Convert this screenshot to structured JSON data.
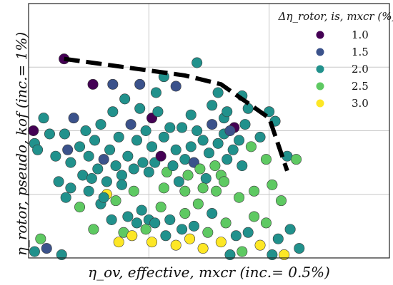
{
  "chart_data": {
    "type": "scatter",
    "xlabel": "η_ov, effective, mxcr (inc.= 0.5%)",
    "ylabel": "η_rotor, pseudo, kof (inc.= 1%)",
    "xlim": [
      0,
      6
    ],
    "ylim": [
      0,
      4
    ],
    "grid": true,
    "legend": {
      "title": "Δη_rotor, is, mxcr (%)",
      "position": "top-right",
      "entries": [
        {
          "label": "1.0",
          "value": 1.0,
          "color": "#440154"
        },
        {
          "label": "1.5",
          "value": 1.5,
          "color": "#3b528b"
        },
        {
          "label": "2.0",
          "value": 2.0,
          "color": "#21918c"
        },
        {
          "label": "2.5",
          "value": 2.5,
          "color": "#5ec962"
        },
        {
          "label": "3.0",
          "value": 3.0,
          "color": "#fde725"
        }
      ]
    },
    "frontier": {
      "style": "dashed",
      "points": [
        [
          0.59,
          3.13
        ],
        [
          2.6,
          2.87
        ],
        [
          3.2,
          2.73
        ],
        [
          4.0,
          2.2
        ],
        [
          4.3,
          1.37
        ]
      ]
    },
    "points": [
      {
        "x": 0.59,
        "y": 3.13,
        "c": 1.0
      },
      {
        "x": 1.07,
        "y": 2.73,
        "c": 1.0
      },
      {
        "x": 1.4,
        "y": 2.73,
        "c": 1.5
      },
      {
        "x": 1.85,
        "y": 2.73,
        "c": 1.5
      },
      {
        "x": 2.05,
        "y": 2.2,
        "c": 1.0
      },
      {
        "x": 2.12,
        "y": 2.6,
        "c": 2.0
      },
      {
        "x": 2.25,
        "y": 2.85,
        "c": 2.0
      },
      {
        "x": 2.45,
        "y": 2.7,
        "c": 1.5
      },
      {
        "x": 2.7,
        "y": 2.25,
        "c": 2.0
      },
      {
        "x": 2.8,
        "y": 3.07,
        "c": 2.0
      },
      {
        "x": 3.05,
        "y": 2.4,
        "c": 2.0
      },
      {
        "x": 3.15,
        "y": 2.6,
        "c": 2.0
      },
      {
        "x": 3.25,
        "y": 2.2,
        "c": 2.0
      },
      {
        "x": 3.3,
        "y": 2.3,
        "c": 2.0
      },
      {
        "x": 3.42,
        "y": 2.05,
        "c": 1.0
      },
      {
        "x": 3.55,
        "y": 2.55,
        "c": 2.0
      },
      {
        "x": 3.65,
        "y": 2.35,
        "c": 2.0
      },
      {
        "x": 4.0,
        "y": 2.3,
        "c": 2.0
      },
      {
        "x": 4.1,
        "y": 2.15,
        "c": 2.0
      },
      {
        "x": 4.3,
        "y": 1.6,
        "c": 2.0
      },
      {
        "x": 4.45,
        "y": 1.55,
        "c": 2.5
      },
      {
        "x": 0.08,
        "y": 2.0,
        "c": 1.0
      },
      {
        "x": 0.1,
        "y": 1.8,
        "c": 2.0
      },
      {
        "x": 0.15,
        "y": 1.7,
        "c": 2.0
      },
      {
        "x": 0.25,
        "y": 2.2,
        "c": 2.0
      },
      {
        "x": 0.35,
        "y": 1.95,
        "c": 2.0
      },
      {
        "x": 0.45,
        "y": 1.6,
        "c": 2.0
      },
      {
        "x": 0.6,
        "y": 1.95,
        "c": 2.0
      },
      {
        "x": 0.65,
        "y": 1.7,
        "c": 1.5
      },
      {
        "x": 0.7,
        "y": 1.5,
        "c": 2.0
      },
      {
        "x": 0.75,
        "y": 2.2,
        "c": 1.5
      },
      {
        "x": 0.85,
        "y": 1.75,
        "c": 2.0
      },
      {
        "x": 0.9,
        "y": 1.3,
        "c": 2.0
      },
      {
        "x": 0.95,
        "y": 2.0,
        "c": 2.0
      },
      {
        "x": 1.0,
        "y": 1.6,
        "c": 2.0
      },
      {
        "x": 1.1,
        "y": 1.85,
        "c": 2.0
      },
      {
        "x": 1.15,
        "y": 1.4,
        "c": 2.0
      },
      {
        "x": 1.2,
        "y": 2.1,
        "c": 2.0
      },
      {
        "x": 1.25,
        "y": 1.55,
        "c": 1.5
      },
      {
        "x": 1.3,
        "y": 1.2,
        "c": 2.0
      },
      {
        "x": 1.35,
        "y": 1.7,
        "c": 2.0
      },
      {
        "x": 1.4,
        "y": 2.3,
        "c": 2.0
      },
      {
        "x": 1.45,
        "y": 1.45,
        "c": 2.0
      },
      {
        "x": 1.5,
        "y": 1.9,
        "c": 2.0
      },
      {
        "x": 1.55,
        "y": 1.3,
        "c": 2.0
      },
      {
        "x": 1.6,
        "y": 2.5,
        "c": 2.0
      },
      {
        "x": 1.65,
        "y": 1.6,
        "c": 2.0
      },
      {
        "x": 1.7,
        "y": 2.1,
        "c": 1.5
      },
      {
        "x": 1.75,
        "y": 1.4,
        "c": 2.0
      },
      {
        "x": 1.8,
        "y": 1.85,
        "c": 2.0
      },
      {
        "x": 1.85,
        "y": 2.35,
        "c": 2.0
      },
      {
        "x": 1.9,
        "y": 1.5,
        "c": 2.0
      },
      {
        "x": 1.95,
        "y": 2.0,
        "c": 2.0
      },
      {
        "x": 2.0,
        "y": 1.35,
        "c": 2.0
      },
      {
        "x": 2.05,
        "y": 1.75,
        "c": 2.0
      },
      {
        "x": 2.1,
        "y": 1.5,
        "c": 2.0
      },
      {
        "x": 2.15,
        "y": 2.3,
        "c": 2.0
      },
      {
        "x": 2.2,
        "y": 1.6,
        "c": 1.0
      },
      {
        "x": 2.25,
        "y": 1.9,
        "c": 2.0
      },
      {
        "x": 2.3,
        "y": 1.35,
        "c": 2.5
      },
      {
        "x": 2.35,
        "y": 2.05,
        "c": 2.0
      },
      {
        "x": 2.4,
        "y": 1.45,
        "c": 2.0
      },
      {
        "x": 2.45,
        "y": 1.7,
        "c": 2.0
      },
      {
        "x": 2.5,
        "y": 1.2,
        "c": 2.0
      },
      {
        "x": 2.55,
        "y": 2.05,
        "c": 2.0
      },
      {
        "x": 2.6,
        "y": 1.55,
        "c": 2.0
      },
      {
        "x": 2.65,
        "y": 1.3,
        "c": 2.5
      },
      {
        "x": 2.7,
        "y": 1.75,
        "c": 2.0
      },
      {
        "x": 2.75,
        "y": 1.5,
        "c": 1.5
      },
      {
        "x": 2.8,
        "y": 2.0,
        "c": 2.0
      },
      {
        "x": 2.85,
        "y": 1.4,
        "c": 2.5
      },
      {
        "x": 2.9,
        "y": 1.85,
        "c": 2.0
      },
      {
        "x": 2.95,
        "y": 1.25,
        "c": 2.0
      },
      {
        "x": 3.0,
        "y": 1.65,
        "c": 2.0
      },
      {
        "x": 3.05,
        "y": 2.1,
        "c": 1.5
      },
      {
        "x": 3.1,
        "y": 1.45,
        "c": 2.5
      },
      {
        "x": 3.15,
        "y": 1.8,
        "c": 2.0
      },
      {
        "x": 3.2,
        "y": 1.3,
        "c": 2.5
      },
      {
        "x": 3.25,
        "y": 1.95,
        "c": 2.0
      },
      {
        "x": 3.3,
        "y": 1.55,
        "c": 2.0
      },
      {
        "x": 3.35,
        "y": 2.0,
        "c": 1.5
      },
      {
        "x": 3.4,
        "y": 1.7,
        "c": 2.0
      },
      {
        "x": 3.5,
        "y": 1.85,
        "c": 2.0
      },
      {
        "x": 3.55,
        "y": 1.45,
        "c": 2.0
      },
      {
        "x": 3.6,
        "y": 2.1,
        "c": 2.0
      },
      {
        "x": 3.7,
        "y": 1.75,
        "c": 2.5
      },
      {
        "x": 3.85,
        "y": 1.9,
        "c": 2.0
      },
      {
        "x": 3.95,
        "y": 1.55,
        "c": 2.5
      },
      {
        "x": 0.3,
        "y": 0.15,
        "c": 1.5
      },
      {
        "x": 0.55,
        "y": 0.05,
        "c": 2.0
      },
      {
        "x": 0.62,
        "y": 0.95,
        "c": 2.0
      },
      {
        "x": 0.85,
        "y": 0.8,
        "c": 2.5
      },
      {
        "x": 1.0,
        "y": 1.05,
        "c": 2.0
      },
      {
        "x": 1.08,
        "y": 0.45,
        "c": 2.5
      },
      {
        "x": 1.2,
        "y": 0.85,
        "c": 2.0
      },
      {
        "x": 1.3,
        "y": 1.0,
        "c": 3.0
      },
      {
        "x": 1.38,
        "y": 0.6,
        "c": 2.0
      },
      {
        "x": 1.45,
        "y": 0.9,
        "c": 2.5
      },
      {
        "x": 1.5,
        "y": 0.25,
        "c": 3.0
      },
      {
        "x": 1.58,
        "y": 0.4,
        "c": 2.5
      },
      {
        "x": 1.65,
        "y": 0.65,
        "c": 2.0
      },
      {
        "x": 1.72,
        "y": 0.35,
        "c": 3.0
      },
      {
        "x": 1.8,
        "y": 0.55,
        "c": 2.0
      },
      {
        "x": 1.88,
        "y": 0.75,
        "c": 2.0
      },
      {
        "x": 1.95,
        "y": 0.45,
        "c": 2.5
      },
      {
        "x": 2.0,
        "y": 0.6,
        "c": 2.0
      },
      {
        "x": 2.05,
        "y": 0.25,
        "c": 3.0
      },
      {
        "x": 2.1,
        "y": 0.55,
        "c": 2.0
      },
      {
        "x": 2.2,
        "y": 0.8,
        "c": 2.5
      },
      {
        "x": 2.28,
        "y": 0.35,
        "c": 2.0
      },
      {
        "x": 2.35,
        "y": 0.6,
        "c": 2.0
      },
      {
        "x": 2.45,
        "y": 0.2,
        "c": 3.0
      },
      {
        "x": 2.55,
        "y": 0.45,
        "c": 2.0
      },
      {
        "x": 2.6,
        "y": 0.7,
        "c": 2.5
      },
      {
        "x": 2.68,
        "y": 0.3,
        "c": 3.0
      },
      {
        "x": 2.75,
        "y": 0.5,
        "c": 2.0
      },
      {
        "x": 2.82,
        "y": 0.85,
        "c": 2.5
      },
      {
        "x": 2.9,
        "y": 0.15,
        "c": 3.0
      },
      {
        "x": 2.98,
        "y": 0.4,
        "c": 2.5
      },
      {
        "x": 3.05,
        "y": 0.7,
        "c": 2.0
      },
      {
        "x": 3.12,
        "y": 1.05,
        "c": 2.5
      },
      {
        "x": 3.2,
        "y": 0.25,
        "c": 3.0
      },
      {
        "x": 3.28,
        "y": 0.55,
        "c": 2.5
      },
      {
        "x": 3.35,
        "y": 0.05,
        "c": 2.0
      },
      {
        "x": 3.45,
        "y": 0.35,
        "c": 2.0
      },
      {
        "x": 3.55,
        "y": 0.1,
        "c": 2.5
      },
      {
        "x": 3.65,
        "y": 0.4,
        "c": 2.0
      },
      {
        "x": 3.75,
        "y": 0.65,
        "c": 2.5
      },
      {
        "x": 3.85,
        "y": 0.2,
        "c": 3.0
      },
      {
        "x": 3.95,
        "y": 0.55,
        "c": 2.5
      },
      {
        "x": 4.05,
        "y": 0.05,
        "c": 2.0
      },
      {
        "x": 4.15,
        "y": 0.3,
        "c": 2.0
      },
      {
        "x": 4.25,
        "y": 0.05,
        "c": 3.0
      },
      {
        "x": 4.35,
        "y": 0.45,
        "c": 2.0
      },
      {
        "x": 4.5,
        "y": 0.15,
        "c": 2.0
      },
      {
        "x": 0.5,
        "y": 1.2,
        "c": 2.0
      },
      {
        "x": 0.7,
        "y": 1.1,
        "c": 2.0
      },
      {
        "x": 1.05,
        "y": 1.25,
        "c": 2.0
      },
      {
        "x": 1.25,
        "y": 0.95,
        "c": 2.0
      },
      {
        "x": 1.55,
        "y": 1.15,
        "c": 2.0
      },
      {
        "x": 1.75,
        "y": 1.05,
        "c": 2.5
      },
      {
        "x": 2.25,
        "y": 1.1,
        "c": 2.5
      },
      {
        "x": 2.6,
        "y": 1.05,
        "c": 2.5
      },
      {
        "x": 2.9,
        "y": 1.1,
        "c": 2.5
      },
      {
        "x": 3.25,
        "y": 1.2,
        "c": 2.5
      },
      {
        "x": 3.5,
        "y": 0.95,
        "c": 2.5
      },
      {
        "x": 3.75,
        "y": 1.05,
        "c": 2.5
      },
      {
        "x": 4.05,
        "y": 1.15,
        "c": 2.5
      },
      {
        "x": 4.2,
        "y": 0.9,
        "c": 2.5
      },
      {
        "x": 0.1,
        "y": 0.1,
        "c": 2.0
      },
      {
        "x": 0.2,
        "y": 0.3,
        "c": 2.5
      }
    ]
  }
}
